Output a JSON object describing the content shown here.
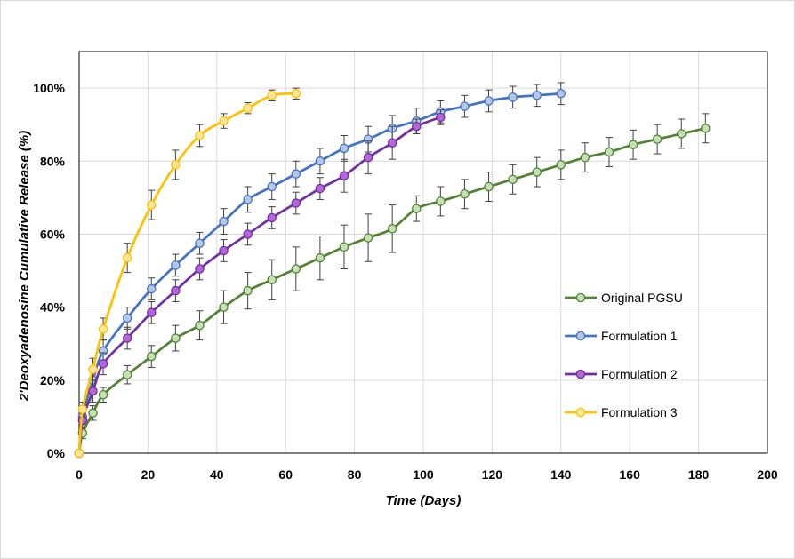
{
  "chart_data": {
    "type": "line",
    "title": "",
    "xlabel": "Time (Days)",
    "ylabel": "2'Deoxyadenosine Cumulative Release (%)",
    "xlim": [
      0,
      200
    ],
    "ylim": [
      0,
      110
    ],
    "x_ticks": [
      0,
      20,
      40,
      60,
      80,
      100,
      120,
      140,
      160,
      180,
      200
    ],
    "y_ticks": [
      0,
      20,
      40,
      60,
      80,
      100
    ],
    "y_tick_labels": [
      "0%",
      "20%",
      "40%",
      "60%",
      "80%",
      "100%"
    ],
    "grid": true,
    "legend_position": "right",
    "series": [
      {
        "name": "Original PGSU",
        "color": "#548235",
        "fill": "#c5e0b4",
        "x": [
          0,
          1,
          4,
          7,
          14,
          21,
          28,
          35,
          42,
          49,
          56,
          63,
          70,
          77,
          84,
          91,
          98,
          105,
          112,
          119,
          126,
          133,
          140,
          147,
          154,
          161,
          168,
          175,
          182
        ],
        "y": [
          0,
          5.5,
          11,
          16,
          21.5,
          26.5,
          31.5,
          35,
          40,
          44.5,
          47.5,
          50.5,
          53.5,
          56.5,
          59,
          61.5,
          67,
          69,
          71,
          73,
          75,
          77,
          79,
          81,
          82.5,
          84.5,
          86,
          87.5,
          89
        ],
        "err": [
          0,
          1.5,
          2,
          2,
          2.5,
          3,
          3.5,
          4,
          4.5,
          5,
          5.5,
          6,
          6,
          6,
          6.5,
          6.5,
          3.5,
          4,
          4,
          4,
          4,
          4,
          4,
          4,
          4,
          4,
          4,
          4,
          4
        ]
      },
      {
        "name": "Formulation 1",
        "color": "#4472c4",
        "fill": "#b4c7e7",
        "x": [
          0,
          1,
          4,
          7,
          14,
          21,
          28,
          35,
          42,
          49,
          56,
          63,
          70,
          77,
          84,
          91,
          98,
          105,
          112,
          119,
          126,
          133,
          140
        ],
        "y": [
          0,
          10,
          20,
          28,
          37,
          45,
          51.5,
          57.5,
          63.5,
          69.5,
          73,
          76.5,
          80,
          83.5,
          86,
          89,
          91,
          93.5,
          95,
          96.5,
          97.5,
          98,
          98.5
        ],
        "err": [
          0,
          2,
          3,
          3,
          3,
          3,
          3,
          3,
          3.5,
          3.5,
          3.5,
          3.5,
          3.5,
          3.5,
          3.5,
          3.5,
          3.5,
          3,
          3,
          3,
          3,
          3,
          3
        ]
      },
      {
        "name": "Formulation 2",
        "color": "#7030a0",
        "fill": "#b565d8",
        "x": [
          0,
          1,
          4,
          7,
          14,
          21,
          28,
          35,
          42,
          49,
          56,
          63,
          70,
          77,
          84,
          91,
          98,
          105
        ],
        "y": [
          0,
          9,
          17,
          24.5,
          31.5,
          38.5,
          44.5,
          50.5,
          55.5,
          60,
          64.5,
          68.5,
          72.5,
          76,
          81,
          85,
          89.5,
          92
        ],
        "err": [
          0,
          2,
          3,
          3,
          3,
          3,
          3,
          3,
          3,
          3,
          3,
          3,
          3,
          4.5,
          4.5,
          4.5,
          2,
          2
        ]
      },
      {
        "name": "Formulation 3",
        "color": "#ffc000",
        "fill": "#ffe699",
        "x": [
          0,
          1,
          4,
          7,
          14,
          21,
          28,
          35,
          42,
          49,
          56,
          63
        ],
        "y": [
          0,
          12,
          23,
          34,
          53.5,
          68,
          79,
          87,
          91,
          94.5,
          98,
          98.5
        ],
        "err": [
          0,
          2,
          3,
          3,
          4,
          4,
          4,
          3,
          2,
          1.5,
          1.5,
          1.5
        ]
      }
    ]
  }
}
